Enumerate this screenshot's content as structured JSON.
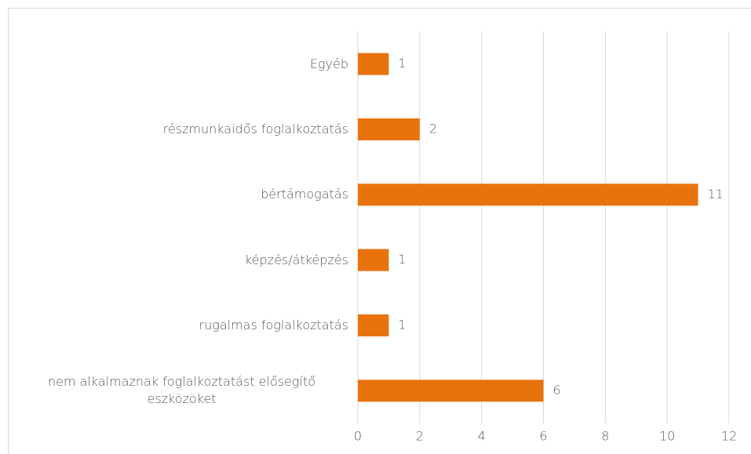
{
  "chart_data": {
    "type": "bar",
    "orientation": "horizontal",
    "categories": [
      "Egyéb",
      "részmunkaidős foglalkoztatás",
      "bértámogatás",
      "képzés/átképzés",
      "rugalmas foglalkoztatás",
      "nem alkalmaznak foglalkoztatást elősegítő eszközöket"
    ],
    "values": [
      1,
      2,
      11,
      1,
      1,
      6
    ],
    "color": "#e8730c",
    "xlim": [
      0,
      12
    ],
    "xticks": [
      0,
      2,
      4,
      6,
      8,
      10,
      12
    ],
    "grid": true
  }
}
